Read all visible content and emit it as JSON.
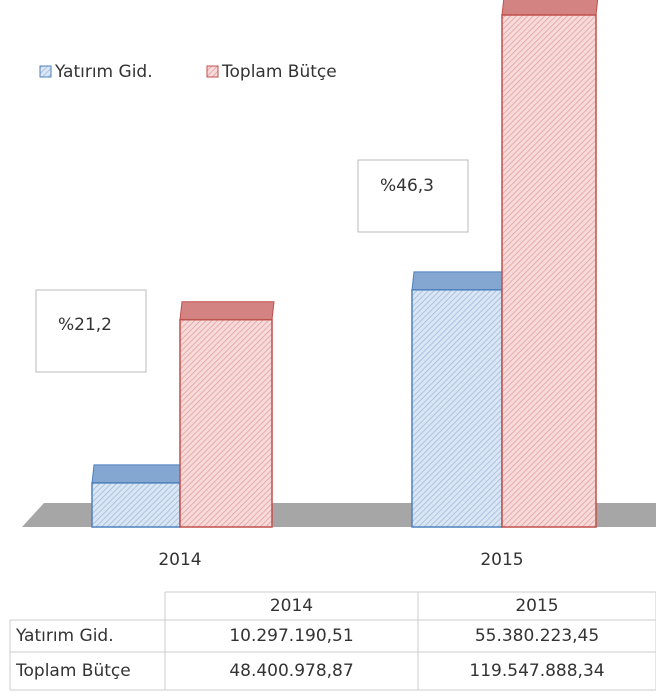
{
  "chart_data": {
    "type": "bar3d",
    "categories": [
      "2014",
      "2015"
    ],
    "series": [
      {
        "name": "Yatırım Gid.",
        "color": "#4f81bd",
        "values": [
          10297190.51,
          55380223.45
        ],
        "value_labels": [
          "10.297.190,51",
          "55.380.223,45"
        ]
      },
      {
        "name": "Toplam Bütçe",
        "color": "#c0504d",
        "values": [
          48400978.87,
          119547888.34
        ],
        "value_labels": [
          "48.400.978,87",
          "119.547.888,34"
        ]
      }
    ],
    "annotations": [
      "%21,2",
      "%46,3"
    ]
  }
}
